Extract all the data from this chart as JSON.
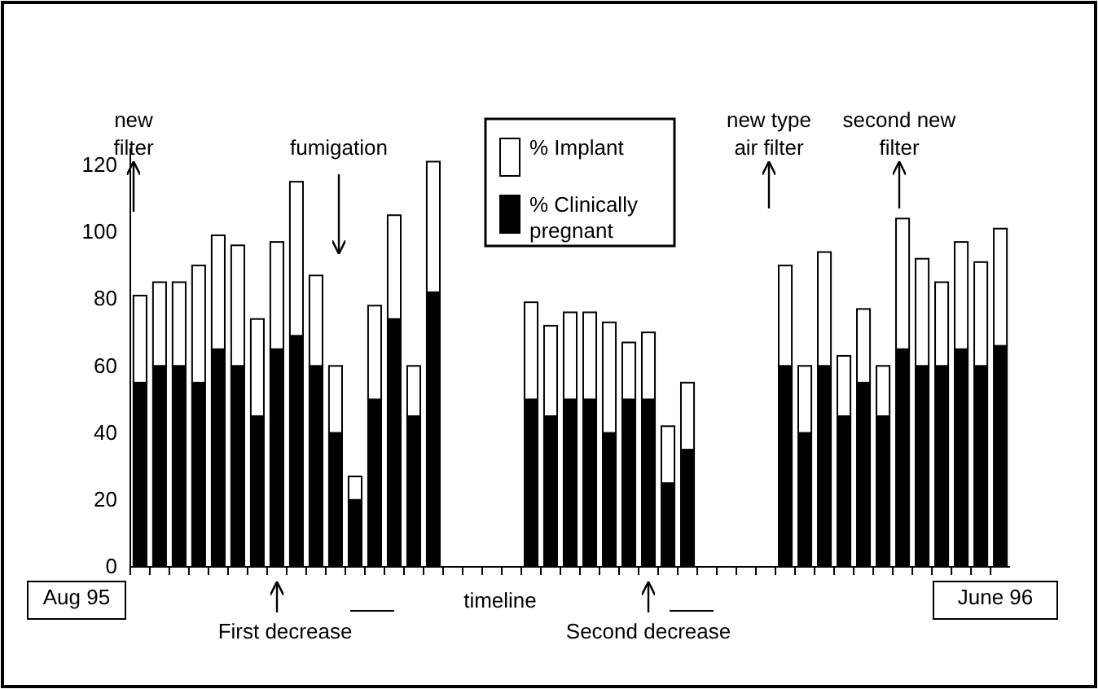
{
  "chart_data": {
    "type": "bar",
    "stacked": true,
    "categories": [
      null,
      null,
      null,
      null,
      null,
      null,
      null,
      null,
      null,
      null,
      null,
      null,
      null,
      null,
      null,
      null,
      null,
      null,
      null,
      null,
      null,
      null,
      null,
      null,
      null,
      null,
      null,
      null,
      null,
      null,
      null,
      null,
      null,
      null,
      null,
      null,
      null,
      null,
      null,
      null,
      null,
      null,
      null,
      null,
      null
    ],
    "series": [
      {
        "name": "% Clinically pregnant",
        "color": "#000000",
        "values": [
          55,
          60,
          60,
          55,
          65,
          60,
          45,
          65,
          69,
          60,
          40,
          20,
          50,
          74,
          45,
          82,
          null,
          null,
          null,
          null,
          50,
          45,
          50,
          50,
          40,
          50,
          50,
          25,
          35,
          null,
          null,
          null,
          null,
          60,
          40,
          60,
          45,
          55,
          45,
          65,
          60,
          60,
          65,
          60,
          66
        ]
      },
      {
        "name": "% Implant",
        "color": "#ffffff",
        "values": [
          26,
          25,
          25,
          35,
          34,
          36,
          29,
          32,
          46,
          27,
          20,
          7,
          28,
          31,
          15,
          39,
          null,
          null,
          null,
          null,
          29,
          27,
          26,
          26,
          33,
          17,
          20,
          17,
          20,
          null,
          null,
          null,
          null,
          30,
          20,
          34,
          18,
          22,
          15,
          39,
          32,
          25,
          32,
          31,
          35
        ]
      }
    ],
    "ylim": [
      0,
      125
    ],
    "yticks": [
      0,
      20,
      40,
      60,
      80,
      100,
      120
    ],
    "grid": false,
    "legend": "top",
    "annotations": [
      "new filter",
      "fumigation",
      "new type air filter",
      "second new filter",
      "Aug 95",
      "First decrease",
      "timeline",
      "Second decrease",
      "June 96"
    ]
  }
}
